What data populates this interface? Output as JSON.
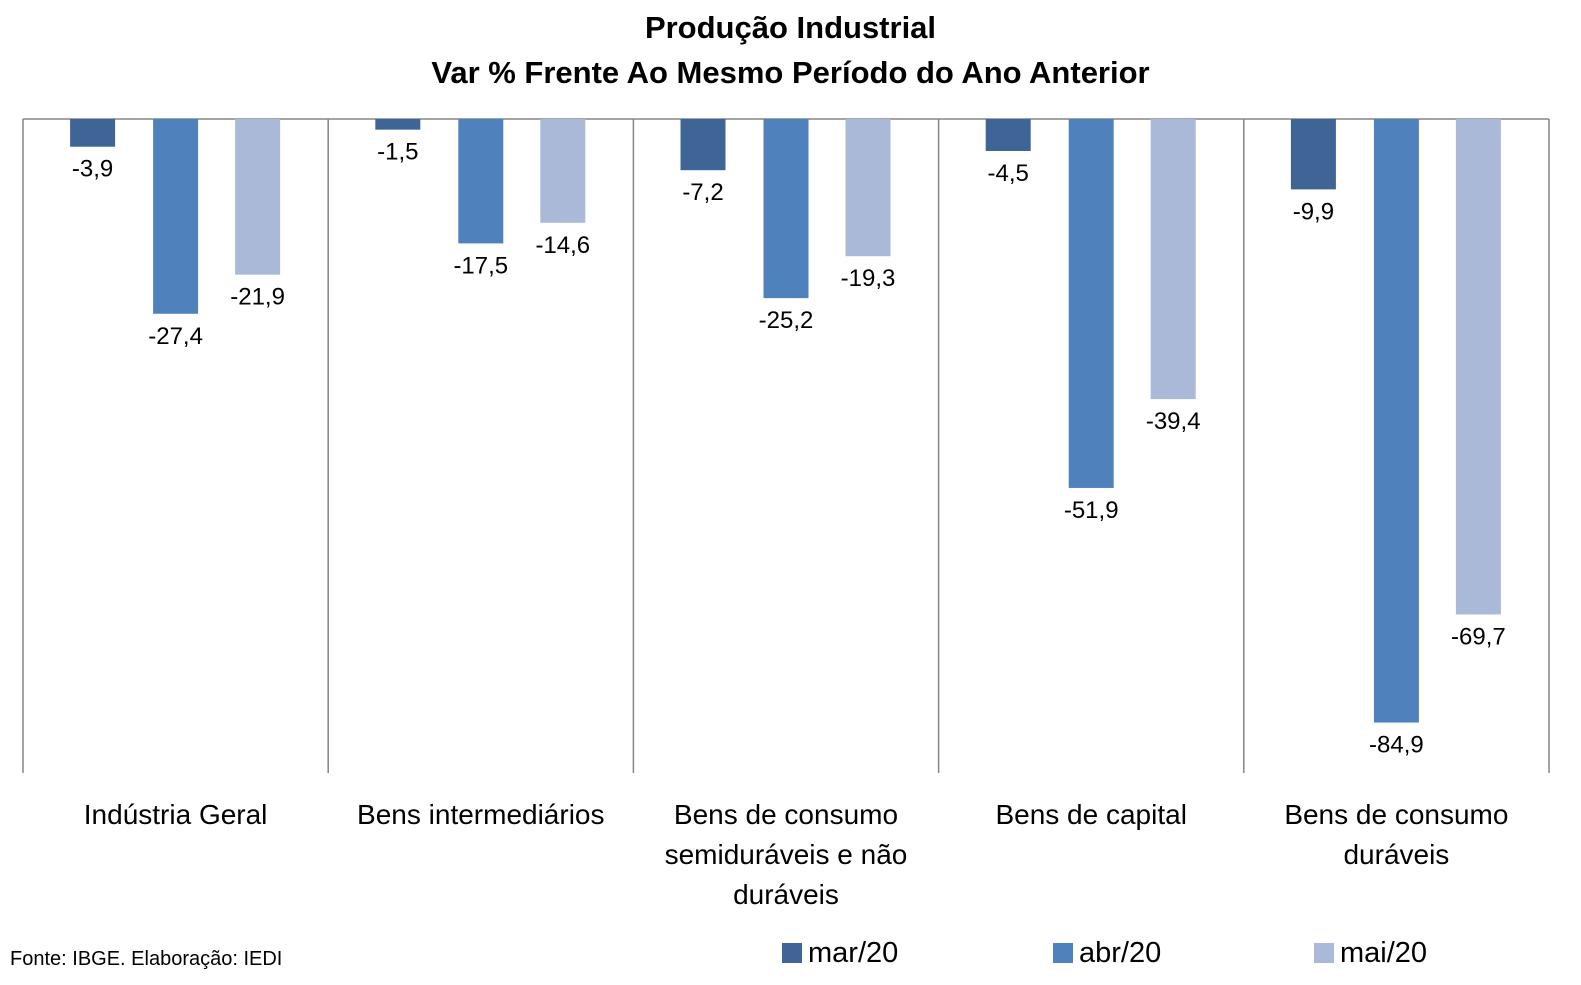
{
  "chart_data": {
    "type": "bar",
    "title": "Produção Industrial",
    "subtitle": "Var % Frente Ao Mesmo Período do Ano Anterior",
    "categories": [
      "Indústria Geral",
      "Bens intermediários",
      "Bens de consumo semiduráveis e não duráveis",
      "Bens de capital",
      "Bens de consumo duráveis"
    ],
    "series": [
      {
        "name": "mar/20",
        "color": "#3e6596",
        "values": [
          -3.9,
          -1.5,
          -7.2,
          -4.5,
          -9.9
        ],
        "labels": [
          "-3,9",
          "-1,5",
          "-7,2",
          "-4,5",
          "-9,9"
        ]
      },
      {
        "name": "abr/20",
        "color": "#4f81bd",
        "values": [
          -27.4,
          -17.5,
          -25.2,
          -51.9,
          -84.9
        ],
        "labels": [
          "-27,4",
          "-17,5",
          "-25,2",
          "-51,9",
          "-84,9"
        ]
      },
      {
        "name": "mai/20",
        "color": "#aab9d8",
        "values": [
          -21.9,
          -14.6,
          -19.3,
          -39.4,
          -69.7
        ],
        "labels": [
          "-21,9",
          "-14,6",
          "-19,3",
          "-39,4",
          "-69,7"
        ]
      }
    ],
    "ylim": [
      -92,
      0
    ],
    "grid": false,
    "legend": "bottom"
  },
  "source": "Fonte: IBGE. Elaboração: IEDI",
  "category_label_lines": [
    [
      "Indústria Geral"
    ],
    [
      "Bens intermediários"
    ],
    [
      "Bens de consumo",
      "semiduráveis e não",
      "duráveis"
    ],
    [
      "Bens de capital"
    ],
    [
      "Bens de consumo",
      "duráveis"
    ]
  ]
}
